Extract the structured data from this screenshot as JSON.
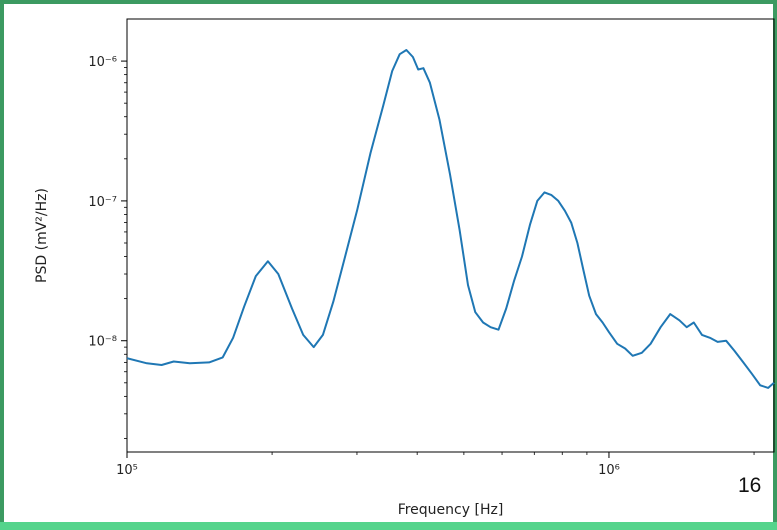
{
  "page_number": "16",
  "colors": {
    "frame": "#3c9a61",
    "bottom_bar": "#55d48c",
    "line": "#1f77b4"
  },
  "chart_data": {
    "type": "line",
    "xlabel": "Frequency [Hz]",
    "ylabel": "PSD (mV²/Hz)",
    "xscale": "log",
    "yscale": "log",
    "xlim": [
      100000,
      2200000
    ],
    "ylim": [
      1.6e-09,
      2e-06
    ],
    "grid": false,
    "x_ticks": [
      {
        "value": 100000,
        "label": "10⁵"
      },
      {
        "value": 1000000,
        "label": "10⁶"
      }
    ],
    "y_ticks": [
      {
        "value": 1e-08,
        "label": "10⁻⁸"
      },
      {
        "value": 1e-07,
        "label": "10⁻⁷"
      },
      {
        "value": 1e-06,
        "label": "10⁻⁶"
      }
    ],
    "series": [
      {
        "color": "#1f77b4",
        "x": [
          100000,
          110000,
          118000,
          125000,
          135000,
          148000,
          158000,
          166000,
          175000,
          185000,
          196000,
          206000,
          220000,
          232000,
          244000,
          255000,
          268000,
          283000,
          300000,
          320000,
          340000,
          355000,
          368000,
          380000,
          392000,
          402000,
          412000,
          425000,
          445000,
          468000,
          490000,
          510000,
          528000,
          548000,
          568000,
          590000,
          612000,
          636000,
          660000,
          686000,
          710000,
          735000,
          760000,
          785000,
          810000,
          835000,
          860000,
          885000,
          910000,
          940000,
          970000,
          1000000,
          1040000,
          1080000,
          1120000,
          1170000,
          1220000,
          1280000,
          1340000,
          1400000,
          1450000,
          1500000,
          1560000,
          1620000,
          1680000,
          1750000,
          1820000,
          1900000,
          1980000,
          2060000,
          2140000,
          2200000
        ],
        "y": [
          7.5e-09,
          6.9e-09,
          6.7e-09,
          7.1e-09,
          6.9e-09,
          7e-09,
          7.6e-09,
          1.05e-08,
          1.75e-08,
          2.9e-08,
          3.7e-08,
          3e-08,
          1.7e-08,
          1.1e-08,
          9e-09,
          1.1e-08,
          1.9e-08,
          3.9e-08,
          8.5e-08,
          2.2e-07,
          4.8e-07,
          8.5e-07,
          1.12e-06,
          1.2e-06,
          1.07e-06,
          8.7e-07,
          8.9e-07,
          7e-07,
          3.8e-07,
          1.55e-07,
          6.2e-08,
          2.5e-08,
          1.6e-08,
          1.35e-08,
          1.25e-08,
          1.2e-08,
          1.7e-08,
          2.7e-08,
          4e-08,
          6.8e-08,
          1e-07,
          1.15e-07,
          1.1e-07,
          1e-07,
          8.5e-08,
          7e-08,
          5e-08,
          3.2e-08,
          2.1e-08,
          1.55e-08,
          1.35e-08,
          1.15e-08,
          9.5e-09,
          8.8e-09,
          7.8e-09,
          8.2e-09,
          9.5e-09,
          1.25e-08,
          1.55e-08,
          1.4e-08,
          1.25e-08,
          1.35e-08,
          1.1e-08,
          1.05e-08,
          9.8e-09,
          1e-08,
          8.5e-09,
          7e-09,
          5.8e-09,
          4.8e-09,
          4.6e-09,
          5e-09
        ]
      }
    ]
  }
}
